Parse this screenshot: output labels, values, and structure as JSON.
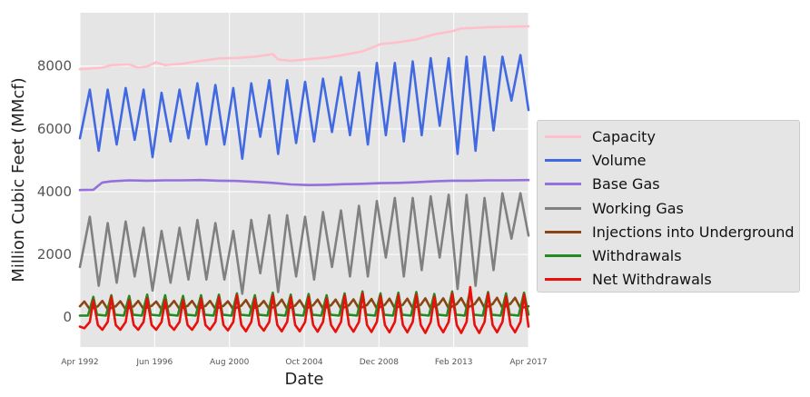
{
  "chart_data": {
    "type": "line",
    "title": "",
    "xlabel": "Date",
    "ylabel": "Million Cubic Feet (MMcf)",
    "xlim": [
      "Apr 1992",
      "Apr 2017"
    ],
    "ylim": [
      -950,
      9700
    ],
    "x_ticks": [
      "Apr 1992",
      "Jun 1996",
      "Aug 2000",
      "Oct 2004",
      "Dec 2008",
      "Feb 2013",
      "Apr 2017"
    ],
    "y_ticks": [
      0,
      2000,
      4000,
      6000,
      8000
    ],
    "grid": true,
    "legend_position": "right",
    "x_start_year": 1992.25,
    "x_end_year": 2017.25,
    "series": [
      {
        "name": "Capacity",
        "color": "#ffc0cb",
        "x": [
          1992.25,
          1993.5,
          1994.0,
          1995.0,
          1995.5,
          1996.0,
          1996.5,
          1997.0,
          1998.0,
          1999.0,
          2000.0,
          2001.0,
          2002.0,
          2003.0,
          2003.3,
          2004.0,
          2005.0,
          2006.0,
          2007.0,
          2008.0,
          2008.5,
          2009.0,
          2010.0,
          2011.0,
          2012.0,
          2013.0,
          2013.5,
          2014.0,
          2015.0,
          2016.0,
          2017.25
        ],
        "values": [
          7900,
          7950,
          8030,
          8050,
          7950,
          7990,
          8120,
          8030,
          8080,
          8170,
          8240,
          8260,
          8300,
          8380,
          8210,
          8170,
          8220,
          8270,
          8360,
          8470,
          8580,
          8700,
          8760,
          8850,
          9010,
          9110,
          9200,
          9210,
          9240,
          9250,
          9270
        ]
      },
      {
        "name": "Volume",
        "color": "#4169e1",
        "x": [
          1992.25,
          1992.8,
          1993.3,
          1993.8,
          1994.3,
          1994.8,
          1995.3,
          1995.8,
          1996.3,
          1996.8,
          1997.3,
          1997.8,
          1998.3,
          1998.8,
          1999.3,
          1999.8,
          2000.3,
          2000.8,
          2001.3,
          2001.8,
          2002.3,
          2002.8,
          2003.3,
          2003.8,
          2004.3,
          2004.8,
          2005.3,
          2005.8,
          2006.3,
          2006.8,
          2007.3,
          2007.8,
          2008.3,
          2008.8,
          2009.3,
          2009.8,
          2010.3,
          2010.8,
          2011.3,
          2011.8,
          2012.3,
          2012.8,
          2013.3,
          2013.8,
          2014.3,
          2014.8,
          2015.3,
          2015.8,
          2016.3,
          2016.8,
          2017.25
        ],
        "values": [
          5700,
          7250,
          5300,
          7250,
          5500,
          7300,
          5650,
          7250,
          5100,
          7150,
          5600,
          7250,
          5700,
          7450,
          5500,
          7400,
          5500,
          7300,
          5050,
          7450,
          5750,
          7550,
          5200,
          7550,
          5550,
          7500,
          5600,
          7600,
          5900,
          7650,
          5800,
          7800,
          5500,
          8100,
          5800,
          8100,
          5600,
          8150,
          5800,
          8250,
          6100,
          8250,
          5200,
          8300,
          5300,
          8300,
          5950,
          8300,
          6900,
          8350,
          6600
        ]
      },
      {
        "name": "Base Gas",
        "color": "#9370db",
        "x": [
          1992.25,
          1993.0,
          1993.3,
          1993.5,
          1994.0,
          1995.0,
          1996.0,
          1997.0,
          1998.0,
          1999.0,
          2000.0,
          2001.0,
          2002.0,
          2003.0,
          2004.0,
          2005.0,
          2006.0,
          2007.0,
          2008.0,
          2009.0,
          2010.0,
          2011.0,
          2012.0,
          2013.0,
          2014.0,
          2015.0,
          2016.0,
          2017.25
        ],
        "values": [
          4050,
          4060,
          4200,
          4290,
          4330,
          4360,
          4350,
          4360,
          4360,
          4370,
          4350,
          4340,
          4310,
          4280,
          4230,
          4210,
          4220,
          4240,
          4250,
          4270,
          4280,
          4300,
          4330,
          4350,
          4350,
          4360,
          4360,
          4370
        ]
      },
      {
        "name": "Working Gas",
        "color": "#808080",
        "x": [
          1992.25,
          1992.8,
          1993.3,
          1993.8,
          1994.3,
          1994.8,
          1995.3,
          1995.8,
          1996.3,
          1996.8,
          1997.3,
          1997.8,
          1998.3,
          1998.8,
          1999.3,
          1999.8,
          2000.3,
          2000.8,
          2001.3,
          2001.8,
          2002.3,
          2002.8,
          2003.3,
          2003.8,
          2004.3,
          2004.8,
          2005.3,
          2005.8,
          2006.3,
          2006.8,
          2007.3,
          2007.8,
          2008.3,
          2008.8,
          2009.3,
          2009.8,
          2010.3,
          2010.8,
          2011.3,
          2011.8,
          2012.3,
          2012.8,
          2013.3,
          2013.8,
          2014.3,
          2014.8,
          2015.3,
          2015.8,
          2016.3,
          2016.8,
          2017.25
        ],
        "values": [
          1600,
          3200,
          1000,
          3000,
          1100,
          3050,
          1300,
          2850,
          850,
          2750,
          1100,
          2850,
          1200,
          3100,
          1200,
          3000,
          1200,
          2750,
          750,
          3100,
          1400,
          3250,
          800,
          3250,
          1300,
          3200,
          1200,
          3350,
          1600,
          3400,
          1300,
          3550,
          1300,
          3700,
          1900,
          3800,
          1300,
          3800,
          1500,
          3850,
          1900,
          3900,
          900,
          3900,
          1000,
          3800,
          1500,
          3950,
          2500,
          3950,
          2600
        ]
      },
      {
        "name": "Injections into Underground",
        "color": "#8b4513",
        "x": [
          1992.25,
          1992.5,
          1992.8,
          1993.25,
          1993.5,
          1993.8,
          1994.25,
          1994.5,
          1994.8,
          1995.25,
          1995.5,
          1995.8,
          1996.25,
          1996.5,
          1996.8,
          1997.25,
          1997.5,
          1997.8,
          1998.25,
          1998.5,
          1998.8,
          1999.25,
          1999.5,
          1999.8,
          2000.25,
          2000.5,
          2000.8,
          2001.25,
          2001.5,
          2001.8,
          2002.25,
          2002.5,
          2002.8,
          2003.25,
          2003.5,
          2003.8,
          2004.25,
          2004.5,
          2004.8,
          2005.25,
          2005.5,
          2005.8,
          2006.25,
          2006.5,
          2006.8,
          2007.25,
          2007.5,
          2007.8,
          2008.25,
          2008.5,
          2008.8,
          2009.25,
          2009.5,
          2009.8,
          2010.25,
          2010.5,
          2010.8,
          2011.25,
          2011.5,
          2011.8,
          2012.25,
          2012.5,
          2012.8,
          2013.25,
          2013.5,
          2013.8,
          2014.25,
          2014.5,
          2014.8,
          2015.25,
          2015.5,
          2015.8,
          2016.25,
          2016.5,
          2016.8,
          2017.25
        ],
        "values": [
          350,
          500,
          250,
          350,
          520,
          250,
          350,
          510,
          250,
          350,
          520,
          260,
          360,
          500,
          250,
          350,
          520,
          260,
          360,
          520,
          260,
          360,
          520,
          260,
          360,
          510,
          250,
          370,
          550,
          260,
          360,
          520,
          260,
          380,
          560,
          260,
          370,
          540,
          260,
          380,
          560,
          270,
          380,
          560,
          270,
          380,
          570,
          270,
          390,
          580,
          270,
          400,
          590,
          280,
          400,
          590,
          280,
          400,
          600,
          280,
          410,
          600,
          280,
          420,
          610,
          290,
          420,
          620,
          290,
          420,
          620,
          290,
          430,
          620,
          290,
          350
        ]
      },
      {
        "name": "Withdrawals",
        "color": "#228b22",
        "x": [
          1992.25,
          1992.7,
          1993.0,
          1993.2,
          1993.7,
          1994.0,
          1994.2,
          1994.7,
          1995.0,
          1995.2,
          1995.7,
          1996.0,
          1996.2,
          1996.7,
          1997.0,
          1997.2,
          1997.7,
          1998.0,
          1998.2,
          1998.7,
          1999.0,
          1999.2,
          1999.7,
          2000.0,
          2000.2,
          2000.7,
          2001.0,
          2001.2,
          2001.7,
          2002.0,
          2002.2,
          2002.7,
          2003.0,
          2003.2,
          2003.7,
          2004.0,
          2004.2,
          2004.7,
          2005.0,
          2005.2,
          2005.7,
          2006.0,
          2006.2,
          2006.7,
          2007.0,
          2007.2,
          2007.7,
          2008.0,
          2008.2,
          2008.7,
          2009.0,
          2009.2,
          2009.7,
          2010.0,
          2010.2,
          2010.7,
          2011.0,
          2011.2,
          2011.7,
          2012.0,
          2012.2,
          2012.7,
          2013.0,
          2013.2,
          2013.7,
          2014.0,
          2014.2,
          2014.7,
          2015.0,
          2015.2,
          2015.7,
          2016.0,
          2016.2,
          2016.7,
          2017.0,
          2017.25
        ],
        "values": [
          50,
          50,
          650,
          80,
          50,
          700,
          80,
          50,
          680,
          80,
          50,
          720,
          80,
          50,
          700,
          80,
          50,
          680,
          80,
          50,
          700,
          80,
          50,
          720,
          80,
          50,
          760,
          80,
          50,
          700,
          80,
          50,
          780,
          80,
          50,
          720,
          80,
          50,
          740,
          80,
          50,
          700,
          80,
          50,
          760,
          80,
          50,
          820,
          80,
          50,
          760,
          80,
          50,
          780,
          80,
          50,
          800,
          80,
          50,
          740,
          80,
          50,
          820,
          80,
          50,
          860,
          80,
          50,
          800,
          80,
          50,
          760,
          80,
          50,
          780,
          80
        ]
      },
      {
        "name": "Net Withdrawals",
        "color": "#e8100c",
        "x": [
          1992.25,
          1992.5,
          1992.8,
          1993.0,
          1993.25,
          1993.5,
          1993.8,
          1994.0,
          1994.25,
          1994.5,
          1994.8,
          1995.0,
          1995.25,
          1995.5,
          1995.8,
          1996.0,
          1996.25,
          1996.5,
          1996.8,
          1997.0,
          1997.25,
          1997.5,
          1997.8,
          1998.0,
          1998.25,
          1998.5,
          1998.8,
          1999.0,
          1999.25,
          1999.5,
          1999.8,
          2000.0,
          2000.25,
          2000.5,
          2000.8,
          2001.0,
          2001.25,
          2001.5,
          2001.8,
          2002.0,
          2002.25,
          2002.5,
          2002.8,
          2003.0,
          2003.25,
          2003.5,
          2003.8,
          2004.0,
          2004.25,
          2004.5,
          2004.8,
          2005.0,
          2005.25,
          2005.5,
          2005.8,
          2006.0,
          2006.25,
          2006.5,
          2006.8,
          2007.0,
          2007.25,
          2007.5,
          2007.8,
          2008.0,
          2008.25,
          2008.5,
          2008.8,
          2009.0,
          2009.25,
          2009.5,
          2009.8,
          2010.0,
          2010.25,
          2010.5,
          2010.8,
          2011.0,
          2011.25,
          2011.5,
          2011.8,
          2012.0,
          2012.25,
          2012.5,
          2012.8,
          2013.0,
          2013.25,
          2013.5,
          2013.8,
          2014.0,
          2014.25,
          2014.5,
          2014.8,
          2015.0,
          2015.25,
          2015.5,
          2015.8,
          2016.0,
          2016.25,
          2016.5,
          2016.8,
          2017.0,
          2017.25
        ],
        "values": [
          -300,
          -350,
          -150,
          550,
          -250,
          -400,
          -150,
          650,
          -250,
          -400,
          -150,
          550,
          -250,
          -400,
          -150,
          600,
          -250,
          -400,
          -150,
          550,
          -250,
          -400,
          -150,
          550,
          -250,
          -400,
          -150,
          600,
          -250,
          -400,
          -150,
          650,
          -250,
          -420,
          -150,
          700,
          -250,
          -450,
          -150,
          600,
          -250,
          -430,
          -150,
          700,
          -250,
          -450,
          -150,
          650,
          -250,
          -450,
          -150,
          650,
          -250,
          -460,
          -150,
          600,
          -250,
          -470,
          -150,
          700,
          -250,
          -460,
          -150,
          760,
          -250,
          -470,
          -150,
          680,
          -250,
          -480,
          -150,
          700,
          -250,
          -480,
          -150,
          720,
          -250,
          -500,
          -150,
          650,
          -250,
          -480,
          -150,
          760,
          -250,
          -500,
          -150,
          960,
          -250,
          -500,
          -150,
          760,
          -250,
          -480,
          -150,
          660,
          -250,
          -480,
          -150,
          720,
          -300
        ]
      }
    ]
  }
}
